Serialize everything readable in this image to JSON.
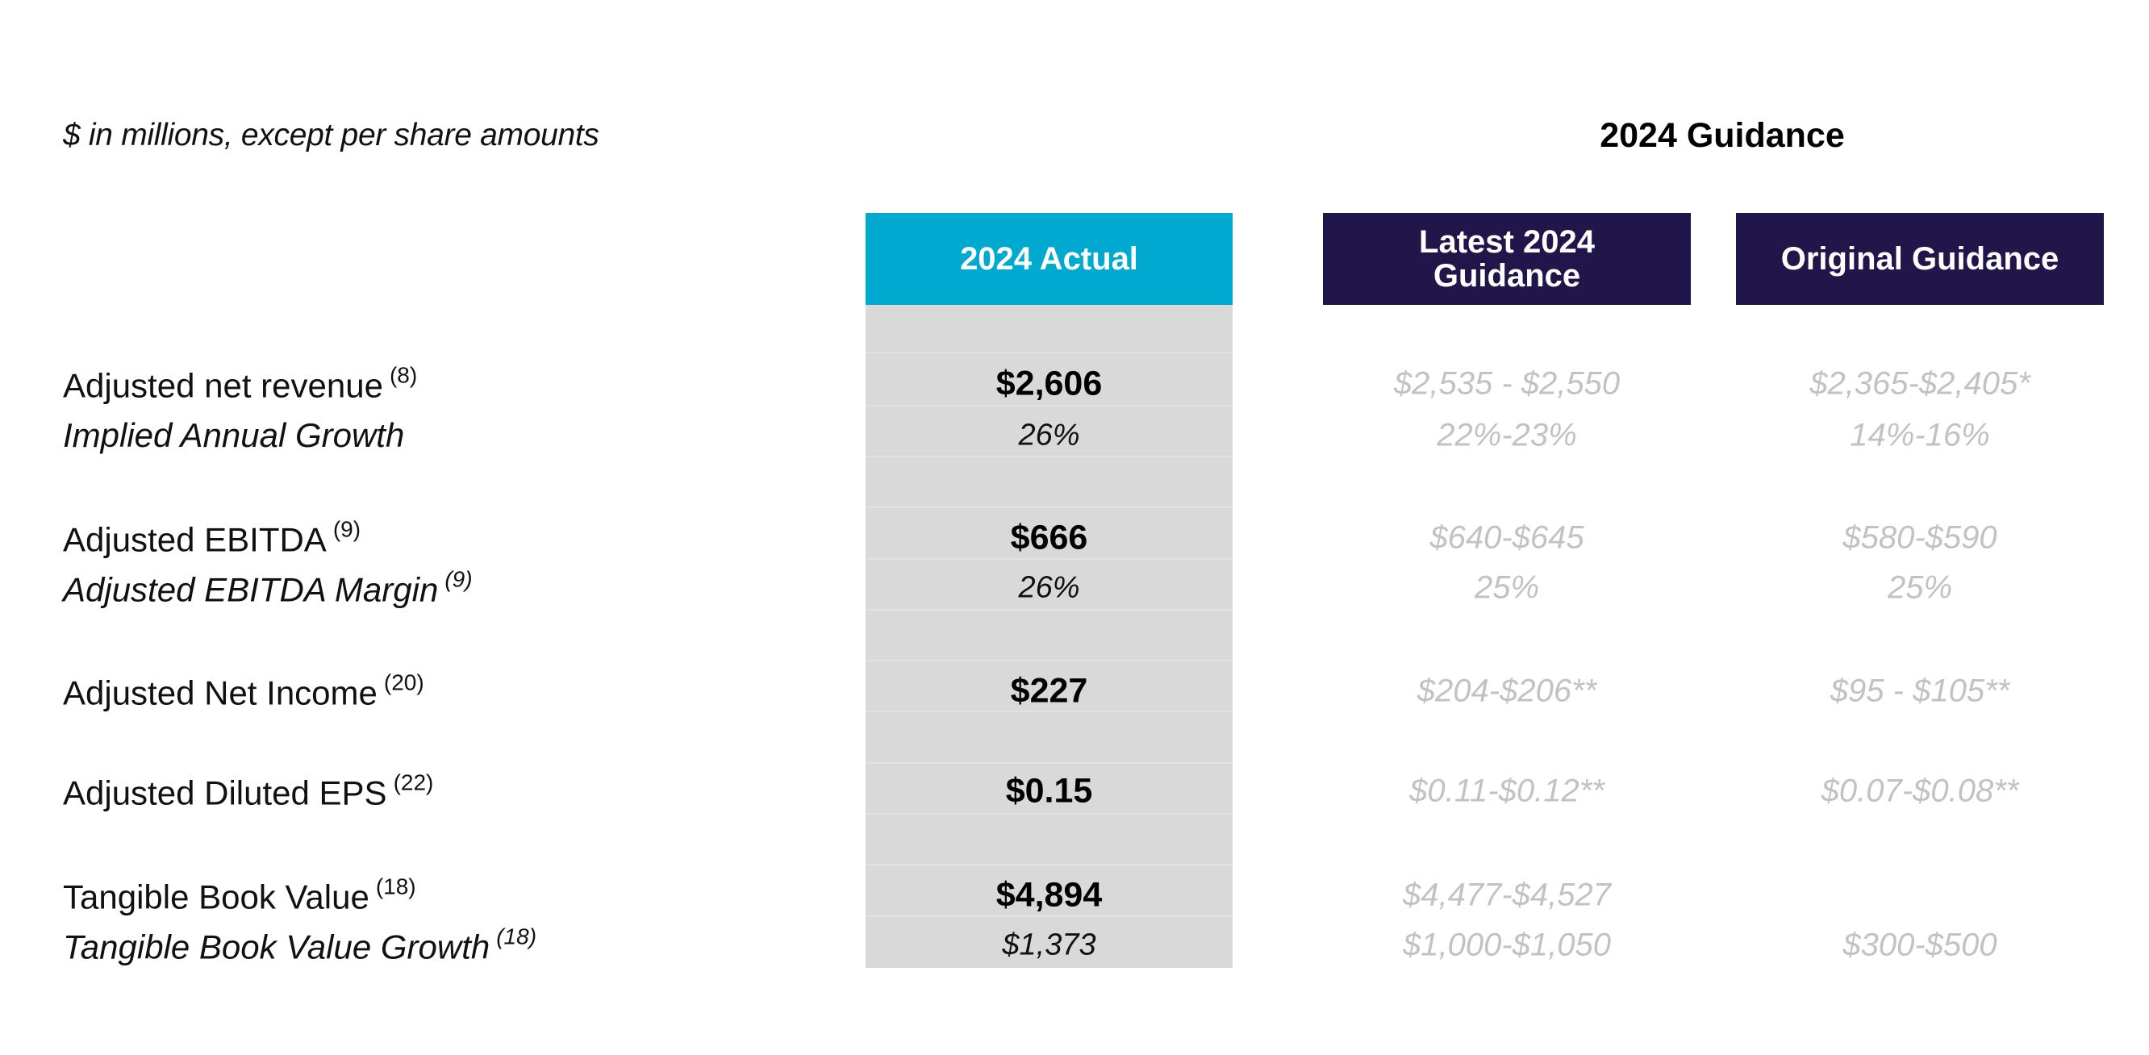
{
  "units_note": "$ in millions, except per share amounts",
  "guidance_heading": "2024 Guidance",
  "headers": {
    "actual": "2024 Actual",
    "latest": "Latest 2024 Guidance",
    "original": "Original Guidance"
  },
  "colors": {
    "actual_header": "#00a9cf",
    "guidance_header": "#20164a",
    "actual_column": "#d9d9d9",
    "guidance_text": "#c2c2c2"
  },
  "rows": [
    {
      "label": "Adjusted net revenue",
      "note": "(8)",
      "actual": "$2,606",
      "latest": "$2,535 - $2,550",
      "original": "$2,365-$2,405*"
    },
    {
      "label": "Implied Annual Growth",
      "note": "",
      "actual": "26%",
      "latest": "22%-23%",
      "original": "14%-16%"
    },
    {
      "label": "Adjusted EBITDA",
      "note": "(9)",
      "actual": "$666",
      "latest": "$640-$645",
      "original": "$580-$590"
    },
    {
      "label": "Adjusted EBITDA Margin",
      "note": "(9)",
      "actual": "26%",
      "latest": "25%",
      "original": "25%"
    },
    {
      "label": "Adjusted Net Income",
      "note": "(20)",
      "actual": "$227",
      "latest": "$204-$206**",
      "original": "$95 - $105**"
    },
    {
      "label": "Adjusted Diluted EPS",
      "note": "(22)",
      "actual": "$0.15",
      "latest": "$0.11-$0.12**",
      "original": "$0.07-$0.08**"
    },
    {
      "label": "Tangible Book Value",
      "note": "(18)",
      "actual": "$4,894",
      "latest": "$4,477-$4,527",
      "original": ""
    },
    {
      "label": "Tangible Book Value Growth",
      "note": "(18)",
      "actual": "$1,373",
      "latest": "$1,000-$1,050",
      "original": "$300-$500"
    }
  ]
}
